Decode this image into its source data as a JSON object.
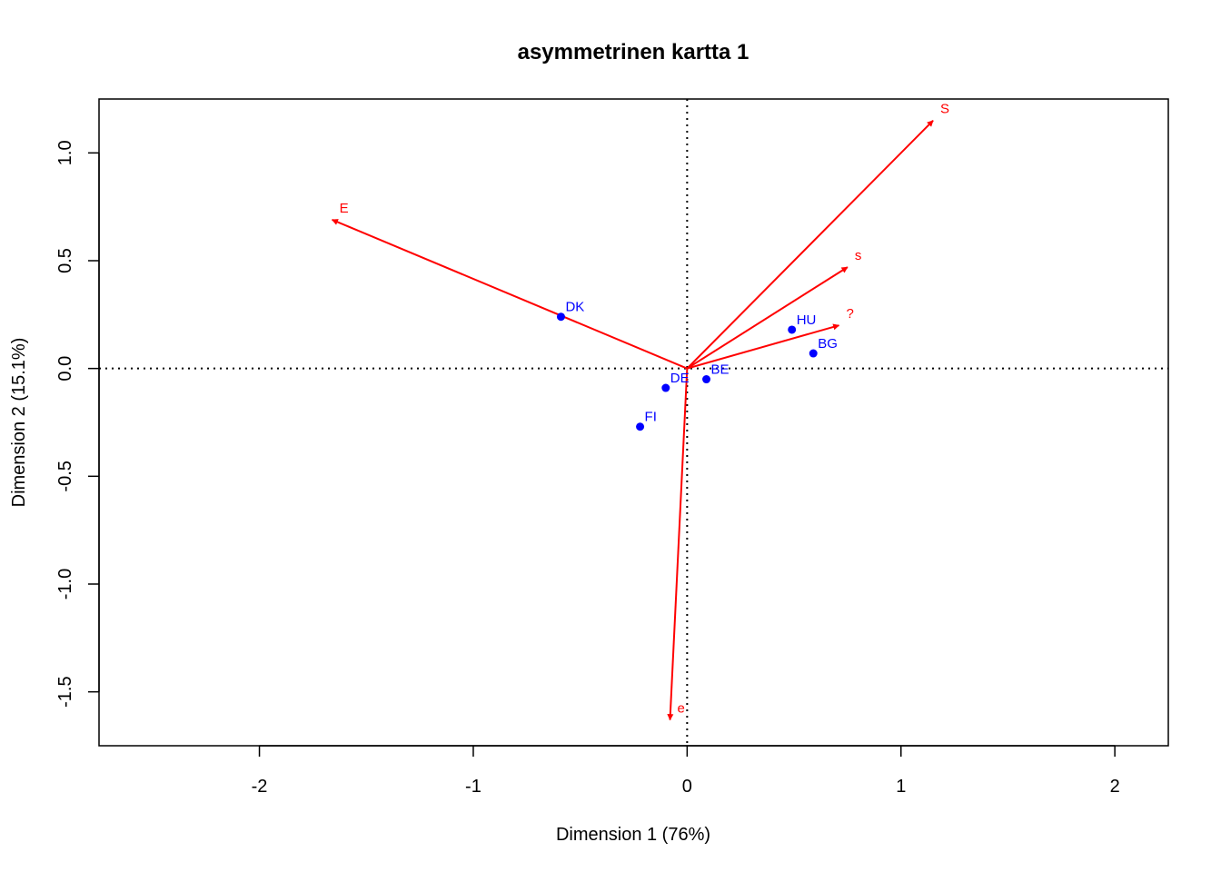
{
  "chart_data": {
    "type": "scatter",
    "title": "asymmetrinen kartta 1",
    "xlabel": "Dimension 1 (76%)",
    "ylabel": "Dimension 2 (15.1%)",
    "xlim": [
      -2.75,
      2.25
    ],
    "ylim": [
      -1.75,
      1.25
    ],
    "xticks": [
      -2,
      -1,
      0,
      1,
      2
    ],
    "xtick_labels": [
      "-2",
      "-1",
      "0",
      "1",
      "2"
    ],
    "yticks": [
      -1.5,
      -1.0,
      -0.5,
      0.0,
      0.5,
      1.0
    ],
    "ytick_labels": [
      "-1.5",
      "-1.0",
      "-0.5",
      "0.0",
      "0.5",
      "1.0"
    ],
    "reference_lines": {
      "x": 0,
      "y": 0,
      "style": "dotted"
    },
    "series": [
      {
        "name": "rows",
        "color": "#0000ff",
        "marker": "filled-circle",
        "points": [
          {
            "label": "DK",
            "x": -0.59,
            "y": 0.24
          },
          {
            "label": "DE",
            "x": -0.1,
            "y": -0.09
          },
          {
            "label": "FI",
            "x": -0.22,
            "y": -0.27
          },
          {
            "label": "BE",
            "x": 0.09,
            "y": -0.05
          },
          {
            "label": "HU",
            "x": 0.49,
            "y": 0.18
          },
          {
            "label": "BG",
            "x": 0.59,
            "y": 0.07
          }
        ]
      },
      {
        "name": "columns",
        "color": "#ff0000",
        "marker": "arrow-from-origin",
        "points": [
          {
            "label": "E",
            "x": -1.66,
            "y": 0.69
          },
          {
            "label": "S",
            "x": 1.15,
            "y": 1.15
          },
          {
            "label": "s",
            "x": 0.75,
            "y": 0.47
          },
          {
            "label": "?",
            "x": 0.71,
            "y": 0.2
          },
          {
            "label": "e",
            "x": -0.08,
            "y": -1.63
          }
        ]
      }
    ]
  }
}
